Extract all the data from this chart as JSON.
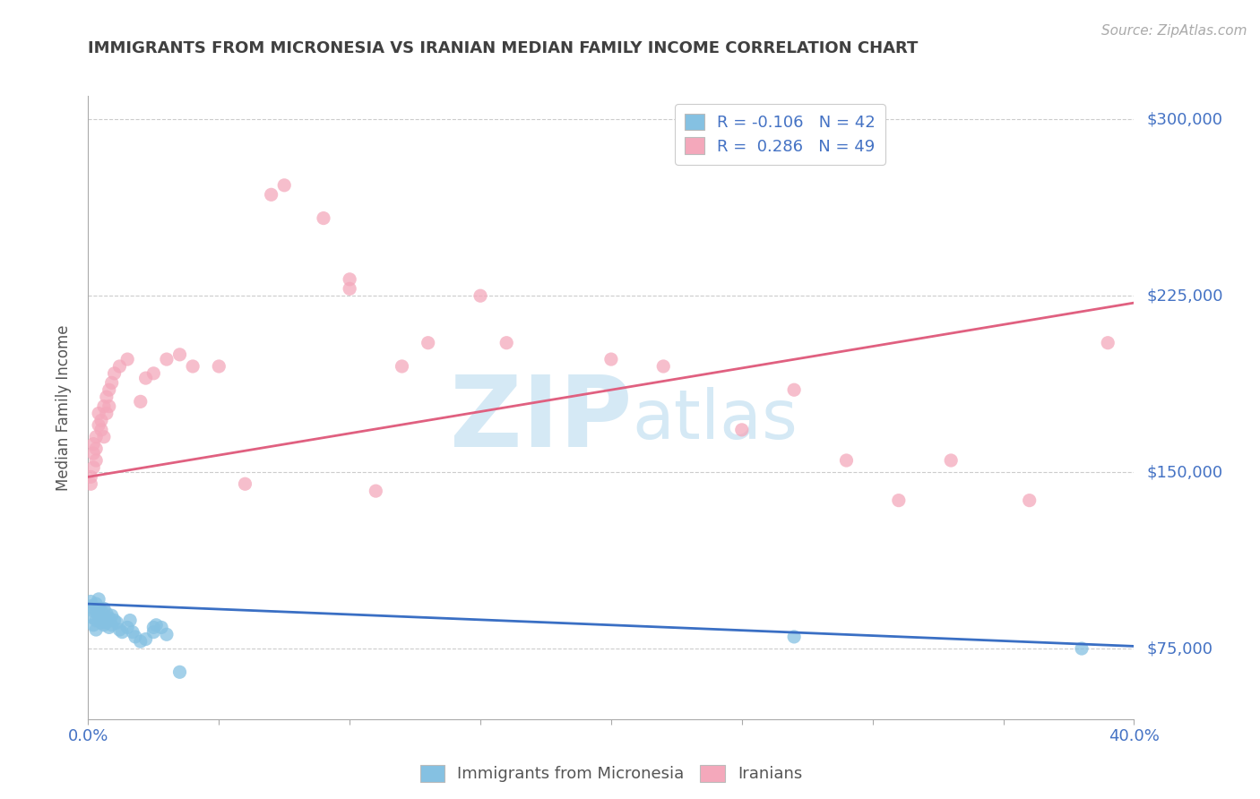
{
  "title": "IMMIGRANTS FROM MICRONESIA VS IRANIAN MEDIAN FAMILY INCOME CORRELATION CHART",
  "source": "Source: ZipAtlas.com",
  "ylabel": "Median Family Income",
  "xlim": [
    0.0,
    0.4
  ],
  "ylim": [
    45000,
    310000
  ],
  "yticks": [
    75000,
    150000,
    225000,
    300000
  ],
  "ytick_labels": [
    "$75,000",
    "$150,000",
    "$225,000",
    "$300,000"
  ],
  "xticks": [
    0.0,
    0.05,
    0.1,
    0.15,
    0.2,
    0.25,
    0.3,
    0.35,
    0.4
  ],
  "xtick_show": [
    "0.0%",
    "",
    "",
    "",
    "",
    "",
    "",
    "",
    "40.0%"
  ],
  "legend_blue_R": "-0.106",
  "legend_blue_N": "42",
  "legend_pink_R": "0.286",
  "legend_pink_N": "49",
  "blue_color": "#85c1e2",
  "pink_color": "#f4a8bb",
  "blue_line_color": "#3a6fc4",
  "pink_line_color": "#e06080",
  "axis_label_color": "#4472c4",
  "title_color": "#404040",
  "blue_scatter": [
    [
      0.001,
      95000
    ],
    [
      0.001,
      93000
    ],
    [
      0.002,
      91000
    ],
    [
      0.002,
      88000
    ],
    [
      0.002,
      85000
    ],
    [
      0.003,
      83000
    ],
    [
      0.003,
      87000
    ],
    [
      0.003,
      91000
    ],
    [
      0.003,
      94000
    ],
    [
      0.004,
      89000
    ],
    [
      0.004,
      92000
    ],
    [
      0.004,
      96000
    ],
    [
      0.005,
      88000
    ],
    [
      0.005,
      91000
    ],
    [
      0.005,
      86000
    ],
    [
      0.006,
      85000
    ],
    [
      0.006,
      92000
    ],
    [
      0.006,
      88000
    ],
    [
      0.007,
      90000
    ],
    [
      0.007,
      86000
    ],
    [
      0.008,
      84000
    ],
    [
      0.008,
      88000
    ],
    [
      0.009,
      85000
    ],
    [
      0.009,
      89000
    ],
    [
      0.01,
      87000
    ],
    [
      0.011,
      86000
    ],
    [
      0.012,
      83000
    ],
    [
      0.013,
      82000
    ],
    [
      0.015,
      84000
    ],
    [
      0.016,
      87000
    ],
    [
      0.017,
      82000
    ],
    [
      0.018,
      80000
    ],
    [
      0.02,
      78000
    ],
    [
      0.022,
      79000
    ],
    [
      0.025,
      82000
    ],
    [
      0.025,
      84000
    ],
    [
      0.026,
      85000
    ],
    [
      0.028,
      84000
    ],
    [
      0.03,
      81000
    ],
    [
      0.035,
      65000
    ],
    [
      0.27,
      80000
    ],
    [
      0.38,
      75000
    ]
  ],
  "pink_scatter": [
    [
      0.001,
      145000
    ],
    [
      0.001,
      148000
    ],
    [
      0.002,
      152000
    ],
    [
      0.002,
      158000
    ],
    [
      0.002,
      162000
    ],
    [
      0.003,
      155000
    ],
    [
      0.003,
      165000
    ],
    [
      0.003,
      160000
    ],
    [
      0.004,
      170000
    ],
    [
      0.004,
      175000
    ],
    [
      0.005,
      168000
    ],
    [
      0.005,
      172000
    ],
    [
      0.006,
      165000
    ],
    [
      0.006,
      178000
    ],
    [
      0.007,
      182000
    ],
    [
      0.007,
      175000
    ],
    [
      0.008,
      185000
    ],
    [
      0.008,
      178000
    ],
    [
      0.009,
      188000
    ],
    [
      0.01,
      192000
    ],
    [
      0.012,
      195000
    ],
    [
      0.015,
      198000
    ],
    [
      0.02,
      180000
    ],
    [
      0.022,
      190000
    ],
    [
      0.025,
      192000
    ],
    [
      0.03,
      198000
    ],
    [
      0.035,
      200000
    ],
    [
      0.04,
      195000
    ],
    [
      0.05,
      195000
    ],
    [
      0.06,
      145000
    ],
    [
      0.07,
      268000
    ],
    [
      0.075,
      272000
    ],
    [
      0.09,
      258000
    ],
    [
      0.1,
      232000
    ],
    [
      0.1,
      228000
    ],
    [
      0.11,
      142000
    ],
    [
      0.12,
      195000
    ],
    [
      0.13,
      205000
    ],
    [
      0.15,
      225000
    ],
    [
      0.16,
      205000
    ],
    [
      0.2,
      198000
    ],
    [
      0.22,
      195000
    ],
    [
      0.25,
      168000
    ],
    [
      0.27,
      185000
    ],
    [
      0.29,
      155000
    ],
    [
      0.31,
      138000
    ],
    [
      0.33,
      155000
    ],
    [
      0.36,
      138000
    ],
    [
      0.39,
      205000
    ]
  ],
  "blue_trendline": [
    [
      0.0,
      94000
    ],
    [
      0.4,
      76000
    ]
  ],
  "pink_trendline": [
    [
      0.0,
      148000
    ],
    [
      0.4,
      222000
    ]
  ],
  "background_color": "#ffffff",
  "grid_color": "#cccccc"
}
